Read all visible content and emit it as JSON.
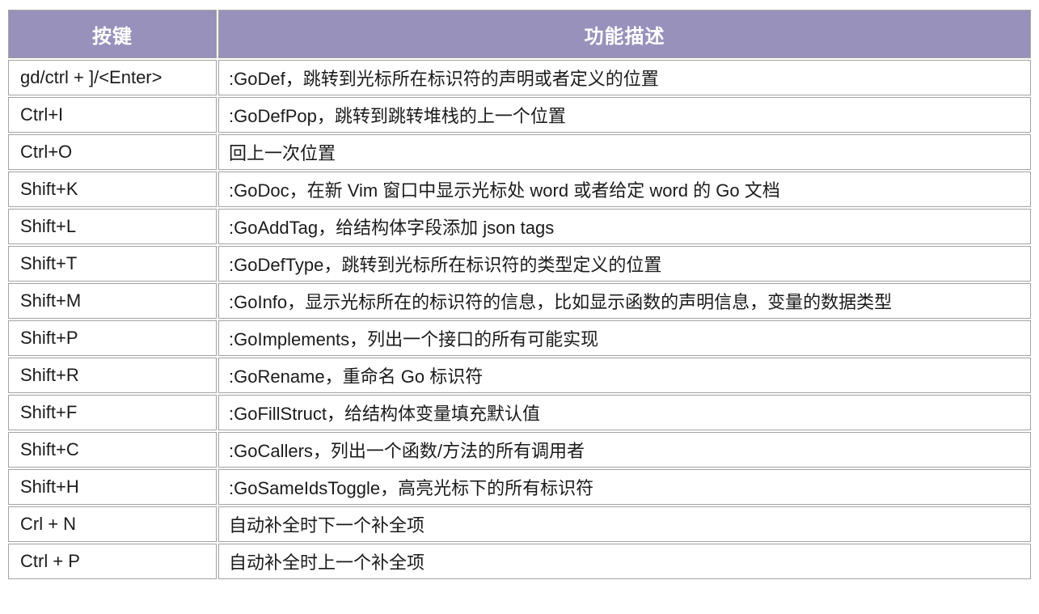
{
  "colors": {
    "header_bg": "#9891bc",
    "header_text": "#ffffff",
    "border": "#a3a3a3",
    "body_text": "#1b1b1b"
  },
  "table": {
    "headers": [
      {
        "label": "按键"
      },
      {
        "label": "功能描述"
      }
    ],
    "rows": [
      {
        "key": "gd/ctrl + ]/<Enter>",
        "desc": ":GoDef，跳转到光标所在标识符的声明或者定义的位置"
      },
      {
        "key": "Ctrl+I",
        "desc": ":GoDefPop，跳转到跳转堆栈的上一个位置"
      },
      {
        "key": "Ctrl+O",
        "desc": "回上一次位置"
      },
      {
        "key": "Shift+K",
        "desc": ":GoDoc，在新 Vim 窗口中显示光标处 word 或者给定 word 的 Go 文档"
      },
      {
        "key": "Shift+L",
        "desc": ":GoAddTag，给结构体字段添加 json tags"
      },
      {
        "key": "Shift+T",
        "desc": ":GoDefType，跳转到光标所在标识符的类型定义的位置"
      },
      {
        "key": "Shift+M",
        "desc": ":GoInfo，显示光标所在的标识符的信息，比如显示函数的声明信息，变量的数据类型"
      },
      {
        "key": "Shift+P",
        "desc": ":GoImplements，列出一个接口的所有可能实现"
      },
      {
        "key": "Shift+R",
        "desc": ":GoRename，重命名 Go 标识符"
      },
      {
        "key": "Shift+F",
        "desc": ":GoFillStruct，给结构体变量填充默认值"
      },
      {
        "key": "Shift+C",
        "desc": ":GoCallers，列出一个函数/方法的所有调用者"
      },
      {
        "key": "Shift+H",
        "desc": ":GoSameIdsToggle，高亮光标下的所有标识符"
      },
      {
        "key": "Crl + N",
        "desc": "自动补全时下一个补全项"
      },
      {
        "key": "Ctrl + P",
        "desc": "自动补全时上一个补全项"
      }
    ]
  }
}
